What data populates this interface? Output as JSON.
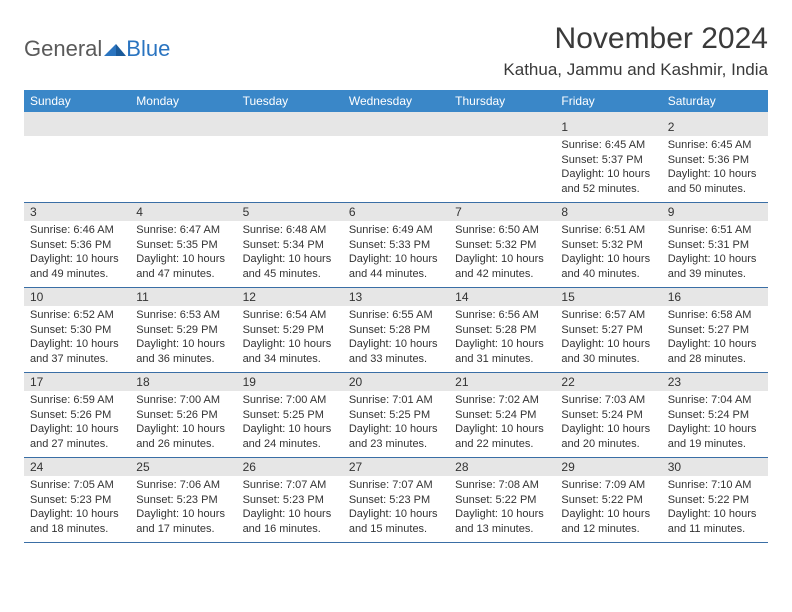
{
  "logo": {
    "part1": "General",
    "part2": "Blue"
  },
  "header": {
    "month_title": "November 2024",
    "location": "Kathua, Jammu and Kashmir, India"
  },
  "colors": {
    "header_bar": "#3a87c8",
    "header_text": "#ffffff",
    "daynum_bg": "#e6e6e6",
    "week_border": "#3a6ea5",
    "text": "#333333",
    "logo_gray": "#5a5a5a",
    "logo_blue": "#2a74c0",
    "background": "#ffffff"
  },
  "weekdays": [
    "Sunday",
    "Monday",
    "Tuesday",
    "Wednesday",
    "Thursday",
    "Friday",
    "Saturday"
  ],
  "weeks": [
    [
      {
        "num": "",
        "sunrise": "",
        "sunset": "",
        "daylight1": "",
        "daylight2": ""
      },
      {
        "num": "",
        "sunrise": "",
        "sunset": "",
        "daylight1": "",
        "daylight2": ""
      },
      {
        "num": "",
        "sunrise": "",
        "sunset": "",
        "daylight1": "",
        "daylight2": ""
      },
      {
        "num": "",
        "sunrise": "",
        "sunset": "",
        "daylight1": "",
        "daylight2": ""
      },
      {
        "num": "",
        "sunrise": "",
        "sunset": "",
        "daylight1": "",
        "daylight2": ""
      },
      {
        "num": "1",
        "sunrise": "Sunrise: 6:45 AM",
        "sunset": "Sunset: 5:37 PM",
        "daylight1": "Daylight: 10 hours",
        "daylight2": "and 52 minutes."
      },
      {
        "num": "2",
        "sunrise": "Sunrise: 6:45 AM",
        "sunset": "Sunset: 5:36 PM",
        "daylight1": "Daylight: 10 hours",
        "daylight2": "and 50 minutes."
      }
    ],
    [
      {
        "num": "3",
        "sunrise": "Sunrise: 6:46 AM",
        "sunset": "Sunset: 5:36 PM",
        "daylight1": "Daylight: 10 hours",
        "daylight2": "and 49 minutes."
      },
      {
        "num": "4",
        "sunrise": "Sunrise: 6:47 AM",
        "sunset": "Sunset: 5:35 PM",
        "daylight1": "Daylight: 10 hours",
        "daylight2": "and 47 minutes."
      },
      {
        "num": "5",
        "sunrise": "Sunrise: 6:48 AM",
        "sunset": "Sunset: 5:34 PM",
        "daylight1": "Daylight: 10 hours",
        "daylight2": "and 45 minutes."
      },
      {
        "num": "6",
        "sunrise": "Sunrise: 6:49 AM",
        "sunset": "Sunset: 5:33 PM",
        "daylight1": "Daylight: 10 hours",
        "daylight2": "and 44 minutes."
      },
      {
        "num": "7",
        "sunrise": "Sunrise: 6:50 AM",
        "sunset": "Sunset: 5:32 PM",
        "daylight1": "Daylight: 10 hours",
        "daylight2": "and 42 minutes."
      },
      {
        "num": "8",
        "sunrise": "Sunrise: 6:51 AM",
        "sunset": "Sunset: 5:32 PM",
        "daylight1": "Daylight: 10 hours",
        "daylight2": "and 40 minutes."
      },
      {
        "num": "9",
        "sunrise": "Sunrise: 6:51 AM",
        "sunset": "Sunset: 5:31 PM",
        "daylight1": "Daylight: 10 hours",
        "daylight2": "and 39 minutes."
      }
    ],
    [
      {
        "num": "10",
        "sunrise": "Sunrise: 6:52 AM",
        "sunset": "Sunset: 5:30 PM",
        "daylight1": "Daylight: 10 hours",
        "daylight2": "and 37 minutes."
      },
      {
        "num": "11",
        "sunrise": "Sunrise: 6:53 AM",
        "sunset": "Sunset: 5:29 PM",
        "daylight1": "Daylight: 10 hours",
        "daylight2": "and 36 minutes."
      },
      {
        "num": "12",
        "sunrise": "Sunrise: 6:54 AM",
        "sunset": "Sunset: 5:29 PM",
        "daylight1": "Daylight: 10 hours",
        "daylight2": "and 34 minutes."
      },
      {
        "num": "13",
        "sunrise": "Sunrise: 6:55 AM",
        "sunset": "Sunset: 5:28 PM",
        "daylight1": "Daylight: 10 hours",
        "daylight2": "and 33 minutes."
      },
      {
        "num": "14",
        "sunrise": "Sunrise: 6:56 AM",
        "sunset": "Sunset: 5:28 PM",
        "daylight1": "Daylight: 10 hours",
        "daylight2": "and 31 minutes."
      },
      {
        "num": "15",
        "sunrise": "Sunrise: 6:57 AM",
        "sunset": "Sunset: 5:27 PM",
        "daylight1": "Daylight: 10 hours",
        "daylight2": "and 30 minutes."
      },
      {
        "num": "16",
        "sunrise": "Sunrise: 6:58 AM",
        "sunset": "Sunset: 5:27 PM",
        "daylight1": "Daylight: 10 hours",
        "daylight2": "and 28 minutes."
      }
    ],
    [
      {
        "num": "17",
        "sunrise": "Sunrise: 6:59 AM",
        "sunset": "Sunset: 5:26 PM",
        "daylight1": "Daylight: 10 hours",
        "daylight2": "and 27 minutes."
      },
      {
        "num": "18",
        "sunrise": "Sunrise: 7:00 AM",
        "sunset": "Sunset: 5:26 PM",
        "daylight1": "Daylight: 10 hours",
        "daylight2": "and 26 minutes."
      },
      {
        "num": "19",
        "sunrise": "Sunrise: 7:00 AM",
        "sunset": "Sunset: 5:25 PM",
        "daylight1": "Daylight: 10 hours",
        "daylight2": "and 24 minutes."
      },
      {
        "num": "20",
        "sunrise": "Sunrise: 7:01 AM",
        "sunset": "Sunset: 5:25 PM",
        "daylight1": "Daylight: 10 hours",
        "daylight2": "and 23 minutes."
      },
      {
        "num": "21",
        "sunrise": "Sunrise: 7:02 AM",
        "sunset": "Sunset: 5:24 PM",
        "daylight1": "Daylight: 10 hours",
        "daylight2": "and 22 minutes."
      },
      {
        "num": "22",
        "sunrise": "Sunrise: 7:03 AM",
        "sunset": "Sunset: 5:24 PM",
        "daylight1": "Daylight: 10 hours",
        "daylight2": "and 20 minutes."
      },
      {
        "num": "23",
        "sunrise": "Sunrise: 7:04 AM",
        "sunset": "Sunset: 5:24 PM",
        "daylight1": "Daylight: 10 hours",
        "daylight2": "and 19 minutes."
      }
    ],
    [
      {
        "num": "24",
        "sunrise": "Sunrise: 7:05 AM",
        "sunset": "Sunset: 5:23 PM",
        "daylight1": "Daylight: 10 hours",
        "daylight2": "and 18 minutes."
      },
      {
        "num": "25",
        "sunrise": "Sunrise: 7:06 AM",
        "sunset": "Sunset: 5:23 PM",
        "daylight1": "Daylight: 10 hours",
        "daylight2": "and 17 minutes."
      },
      {
        "num": "26",
        "sunrise": "Sunrise: 7:07 AM",
        "sunset": "Sunset: 5:23 PM",
        "daylight1": "Daylight: 10 hours",
        "daylight2": "and 16 minutes."
      },
      {
        "num": "27",
        "sunrise": "Sunrise: 7:07 AM",
        "sunset": "Sunset: 5:23 PM",
        "daylight1": "Daylight: 10 hours",
        "daylight2": "and 15 minutes."
      },
      {
        "num": "28",
        "sunrise": "Sunrise: 7:08 AM",
        "sunset": "Sunset: 5:22 PM",
        "daylight1": "Daylight: 10 hours",
        "daylight2": "and 13 minutes."
      },
      {
        "num": "29",
        "sunrise": "Sunrise: 7:09 AM",
        "sunset": "Sunset: 5:22 PM",
        "daylight1": "Daylight: 10 hours",
        "daylight2": "and 12 minutes."
      },
      {
        "num": "30",
        "sunrise": "Sunrise: 7:10 AM",
        "sunset": "Sunset: 5:22 PM",
        "daylight1": "Daylight: 10 hours",
        "daylight2": "and 11 minutes."
      }
    ]
  ]
}
